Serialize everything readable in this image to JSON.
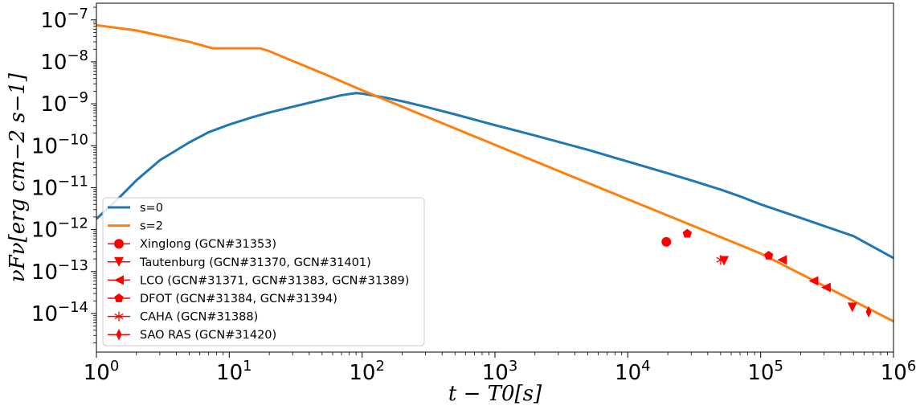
{
  "chart_data": {
    "type": "line",
    "title": "",
    "xlabel": "t − T0[s]",
    "ylabel": "νFν[erg cm−2 s−1]",
    "xscale": "log",
    "yscale": "log",
    "xlim": [
      1,
      1000000
    ],
    "ylim": [
      1.2e-15,
      2.5e-07
    ],
    "x_ticks": [
      {
        "value": 1,
        "base": "10",
        "exp": "0"
      },
      {
        "value": 10,
        "base": "10",
        "exp": "1"
      },
      {
        "value": 100,
        "base": "10",
        "exp": "2"
      },
      {
        "value": 1000,
        "base": "10",
        "exp": "3"
      },
      {
        "value": 10000,
        "base": "10",
        "exp": "4"
      },
      {
        "value": 100000,
        "base": "10",
        "exp": "5"
      },
      {
        "value": 1000000,
        "base": "10",
        "exp": "6"
      }
    ],
    "y_ticks": [
      {
        "value": 1e-14,
        "base": "10",
        "exp": "−14"
      },
      {
        "value": 1e-13,
        "base": "10",
        "exp": "−13"
      },
      {
        "value": 1e-12,
        "base": "10",
        "exp": "−12"
      },
      {
        "value": 1e-11,
        "base": "10",
        "exp": "−11"
      },
      {
        "value": 1e-10,
        "base": "10",
        "exp": "−10"
      },
      {
        "value": 1e-09,
        "base": "10",
        "exp": "−9"
      },
      {
        "value": 1e-08,
        "base": "10",
        "exp": "−8"
      },
      {
        "value": 1e-07,
        "base": "10",
        "exp": "−7"
      }
    ],
    "legend_position": "lower-left",
    "series": [
      {
        "name": "s=0",
        "kind": "line",
        "color": "#1f77b4",
        "x": [
          1,
          1.5,
          2,
          3,
          5,
          7,
          10,
          15,
          20,
          30,
          50,
          70,
          90,
          100,
          150,
          200,
          300,
          500,
          1000,
          2000,
          5000,
          10000,
          20000,
          30000,
          50000,
          70000,
          100000,
          200000,
          500000,
          1000000
        ],
        "y": [
          1.8e-12,
          6e-12,
          1.5e-11,
          4.5e-11,
          1.2e-10,
          2.1e-10,
          3.2e-10,
          4.8e-10,
          6.2e-10,
          8.5e-10,
          1.25e-09,
          1.6e-09,
          1.8e-09,
          1.75e-09,
          1.4e-09,
          1.15e-09,
          8.5e-10,
          5.6e-10,
          3.1e-10,
          1.75e-10,
          8e-11,
          4.2e-11,
          2.2e-11,
          1.5e-11,
          9e-12,
          6.2e-12,
          4e-12,
          1.9e-12,
          7e-13,
          2.1e-13
        ]
      },
      {
        "name": "s=2",
        "kind": "line",
        "color": "#ff7f0e",
        "x": [
          1,
          2,
          5,
          7.5,
          10,
          17,
          20,
          30,
          50,
          100,
          1000,
          10000,
          100000,
          1000000
        ],
        "y": [
          7.5e-08,
          5.6e-08,
          3e-08,
          2.1e-08,
          2.1e-08,
          2.1e-08,
          1.8e-08,
          1.05e-08,
          5.4e-09,
          2.1e-09,
          1.05e-10,
          5.3e-12,
          2.7e-13,
          6.5e-15
        ]
      },
      {
        "name": "Xinglong (GCN#31353)",
        "kind": "points",
        "marker": "circle",
        "color": "#ff0000",
        "points": [
          {
            "x": 19500,
            "y": 5.1e-13
          }
        ]
      },
      {
        "name": "Tautenburg (GCN#31370, GCN#31401)",
        "kind": "points",
        "marker": "triangle-down",
        "color": "#ff0000",
        "points": [
          {
            "x": 53000,
            "y": 1.8e-13
          },
          {
            "x": 490000,
            "y": 1.4e-14
          }
        ]
      },
      {
        "name": "LCO (GCN#31371, GCN#31383, GCN#31389)",
        "kind": "points",
        "marker": "triangle-left",
        "color": "#ff0000",
        "points": [
          {
            "x": 145000,
            "y": 1.9e-13
          },
          {
            "x": 250000,
            "y": 6e-14
          },
          {
            "x": 310000,
            "y": 4.2e-14
          }
        ]
      },
      {
        "name": "DFOT (GCN#31384, GCN#31394)",
        "kind": "points",
        "marker": "pentagon",
        "color": "#ff0000",
        "points": [
          {
            "x": 28000,
            "y": 8e-13
          },
          {
            "x": 115000,
            "y": 2.4e-13
          }
        ]
      },
      {
        "name": "CAHA (GCN#31388)",
        "kind": "points",
        "marker": "star",
        "color": "#ff0000",
        "points": [
          {
            "x": 50000,
            "y": 1.9e-13
          }
        ]
      },
      {
        "name": "SAO RAS (GCN#31420)",
        "kind": "points",
        "marker": "thin-diamond",
        "color": "#ff0000",
        "points": [
          {
            "x": 650000,
            "y": 1.1e-14
          }
        ]
      }
    ]
  }
}
